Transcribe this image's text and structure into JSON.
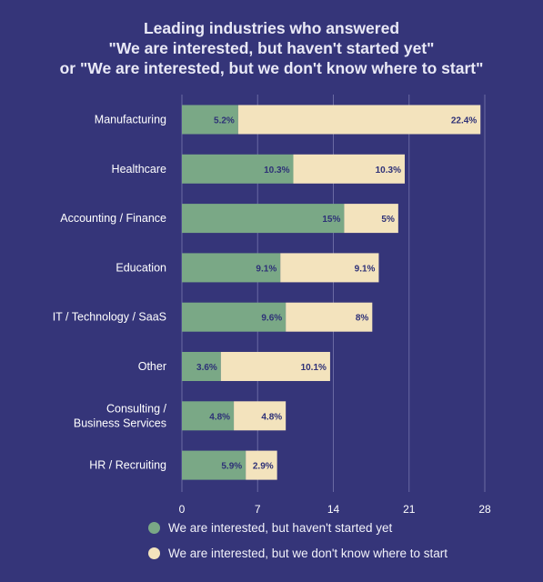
{
  "colors": {
    "background": "#353579",
    "started_not": "#7aa886",
    "dont_know": "#f3e3bd",
    "value_text": "#2e3177",
    "grid": "#6a6aa3"
  },
  "title_lines": [
    "Leading industries who answered",
    "\"We are interested, but haven't started yet\"",
    "or \"We are interested, but we don't know where to start\""
  ],
  "legend": [
    {
      "label": "We are interested, but haven't started yet",
      "color": "#7aa886"
    },
    {
      "label": "We are interested, but we don't know where to start",
      "color": "#f3e3bd"
    }
  ],
  "chart_data": {
    "type": "bar",
    "orientation": "horizontal",
    "stacked": true,
    "title": "Leading industries who answered \"We are interested, but haven't started yet\" or \"We are interested, but we don't know where to start\"",
    "categories": [
      "Manufacturing",
      "Healthcare",
      "Accounting / Finance",
      "Education",
      "IT / Technology / SaaS",
      "Other",
      "Consulting / Business Services",
      "HR / Recruiting"
    ],
    "category_lines": [
      [
        "Manufacturing"
      ],
      [
        "Healthcare"
      ],
      [
        "Accounting / Finance"
      ],
      [
        "Education"
      ],
      [
        "IT / Technology / SaaS"
      ],
      [
        "Other"
      ],
      [
        "Consulting /",
        "Business Services"
      ],
      [
        "HR / Recruiting"
      ]
    ],
    "series": [
      {
        "name": "We are interested, but haven't started yet",
        "values": [
          5.2,
          10.3,
          15,
          9.1,
          9.6,
          3.6,
          4.8,
          5.9
        ],
        "labels": [
          "5.2%",
          "10.3%",
          "15%",
          "9.1%",
          "9.6%",
          "3.6%",
          "4.8%",
          "5.9%"
        ]
      },
      {
        "name": "We are interested, but we don't know where to start",
        "values": [
          22.4,
          10.3,
          5,
          9.1,
          8,
          10.1,
          4.8,
          2.9
        ],
        "labels": [
          "22.4%",
          "10.3%",
          "5%",
          "9.1%",
          "8%",
          "10.1%",
          "4.8%",
          "2.9%"
        ]
      }
    ],
    "xlim": [
      0,
      28
    ],
    "xticks": [
      0,
      7,
      14,
      21,
      28
    ],
    "grid": true,
    "legend_position": "bottom"
  }
}
